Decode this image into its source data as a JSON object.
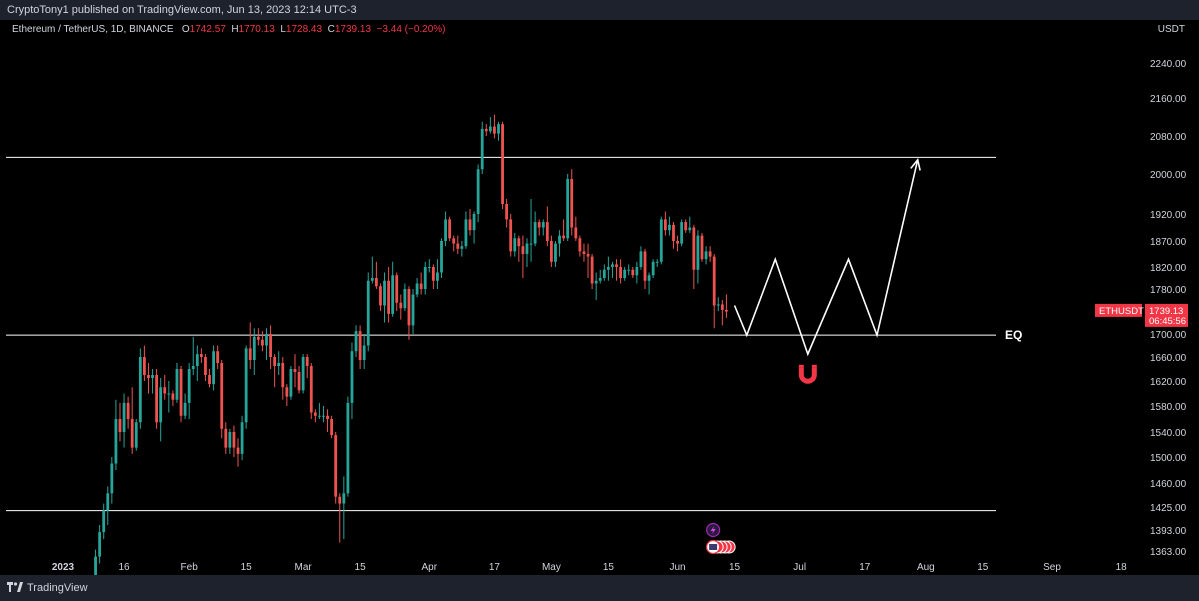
{
  "header": {
    "published": "CryptoTony1 published on TradingView.com, Jun 13, 2023 12:14 UTC-3"
  },
  "legend": {
    "symbol": "Ethereum / TetherUS, 1D, BINANCE",
    "o_label": "O",
    "o": "1742.57",
    "h_label": "H",
    "h": "1770.13",
    "l_label": "L",
    "l": "1728.43",
    "c_label": "C",
    "c": "1739.13",
    "change": "−3.44 (−0.20%)"
  },
  "currency": "USDT",
  "price_tag": {
    "symbol": "ETHUSDT",
    "price": "1739.13",
    "countdown": "06:45:56"
  },
  "eq_label": "EQ",
  "footer": {
    "brand": "TradingView"
  },
  "colors": {
    "up": "#26a69a",
    "down": "#ef5350",
    "background": "#000000",
    "panel": "#1e222d"
  },
  "chart_data": {
    "type": "candlestick",
    "symbol": "ETHUSDT",
    "interval": "1D",
    "y_ticks": [
      1363,
      1393,
      1425,
      1460,
      1500,
      1540,
      1580,
      1620,
      1660,
      1700,
      1740,
      1780,
      1820,
      1870,
      1920,
      2000,
      2080,
      2160,
      2240
    ],
    "y_tick_labels": [
      "1363.00",
      "1393.00",
      "1425.00",
      "1460.00",
      "1500.00",
      "1540.00",
      "1580.00",
      "1620.00",
      "1660.00",
      "1700.00",
      "1740.00",
      "1780.00",
      "1820.00",
      "1870.00",
      "1920.00",
      "2000.00",
      "2080.00",
      "2160.00",
      "2240.00"
    ],
    "x_labels": [
      {
        "label": "2023",
        "date": "2023-01-01",
        "bold": true
      },
      {
        "label": "16",
        "date": "2023-01-16"
      },
      {
        "label": "Feb",
        "date": "2023-02-01"
      },
      {
        "label": "15",
        "date": "2023-02-15"
      },
      {
        "label": "Mar",
        "date": "2023-03-01"
      },
      {
        "label": "15",
        "date": "2023-03-15"
      },
      {
        "label": "Apr",
        "date": "2023-04-01"
      },
      {
        "label": "17",
        "date": "2023-04-17"
      },
      {
        "label": "May",
        "date": "2023-05-01"
      },
      {
        "label": "15",
        "date": "2023-05-15"
      },
      {
        "label": "Jun",
        "date": "2023-06-01"
      },
      {
        "label": "15",
        "date": "2023-06-15"
      },
      {
        "label": "Jul",
        "date": "2023-07-01"
      },
      {
        "label": "17",
        "date": "2023-07-17"
      },
      {
        "label": "Aug",
        "date": "2023-08-01"
      },
      {
        "label": "15",
        "date": "2023-08-15"
      },
      {
        "label": "Sep",
        "date": "2023-09-01"
      },
      {
        "label": "18",
        "date": "2023-09-18"
      }
    ],
    "horizontal_levels": [
      {
        "price": 2035,
        "label": ""
      },
      {
        "price": 1698,
        "label": "EQ"
      },
      {
        "price": 1420,
        "label": ""
      }
    ],
    "projection_path": [
      {
        "date": "2023-06-15",
        "price": 1750
      },
      {
        "date": "2023-06-18",
        "price": 1698
      },
      {
        "date": "2023-06-25",
        "price": 1835
      },
      {
        "date": "2023-07-03",
        "price": 1665
      },
      {
        "date": "2023-07-13",
        "price": 1835
      },
      {
        "date": "2023-07-20",
        "price": 1698
      },
      {
        "date": "2023-07-30",
        "price": 2030
      }
    ],
    "candles": [
      [
        "2023-01-09",
        1320,
        1365,
        1300,
        1355
      ],
      [
        "2023-01-10",
        1355,
        1400,
        1345,
        1390
      ],
      [
        "2023-01-11",
        1390,
        1430,
        1380,
        1420
      ],
      [
        "2023-01-12",
        1420,
        1455,
        1400,
        1445
      ],
      [
        "2023-01-13",
        1445,
        1500,
        1430,
        1490
      ],
      [
        "2023-01-14",
        1490,
        1590,
        1480,
        1560
      ],
      [
        "2023-01-15",
        1560,
        1585,
        1525,
        1540
      ],
      [
        "2023-01-16",
        1540,
        1600,
        1515,
        1585
      ],
      [
        "2023-01-17",
        1585,
        1595,
        1545,
        1560
      ],
      [
        "2023-01-18",
        1560,
        1610,
        1505,
        1515
      ],
      [
        "2023-01-19",
        1515,
        1560,
        1510,
        1555
      ],
      [
        "2023-01-20",
        1555,
        1675,
        1545,
        1660
      ],
      [
        "2023-01-21",
        1660,
        1680,
        1620,
        1630
      ],
      [
        "2023-01-22",
        1630,
        1650,
        1600,
        1625
      ],
      [
        "2023-01-23",
        1625,
        1640,
        1600,
        1630
      ],
      [
        "2023-01-24",
        1630,
        1640,
        1545,
        1555
      ],
      [
        "2023-01-25",
        1555,
        1625,
        1525,
        1610
      ],
      [
        "2023-01-26",
        1610,
        1630,
        1590,
        1600
      ],
      [
        "2023-01-27",
        1600,
        1620,
        1570,
        1600
      ],
      [
        "2023-01-28",
        1600,
        1605,
        1580,
        1590
      ],
      [
        "2023-01-29",
        1590,
        1650,
        1585,
        1640
      ],
      [
        "2023-01-30",
        1640,
        1645,
        1555,
        1565
      ],
      [
        "2023-01-31",
        1565,
        1600,
        1560,
        1585
      ],
      [
        "2023-02-01",
        1585,
        1650,
        1560,
        1640
      ],
      [
        "2023-02-02",
        1640,
        1695,
        1630,
        1645
      ],
      [
        "2023-02-03",
        1645,
        1680,
        1620,
        1665
      ],
      [
        "2023-02-04",
        1665,
        1675,
        1650,
        1660
      ],
      [
        "2023-02-05",
        1660,
        1665,
        1620,
        1630
      ],
      [
        "2023-02-06",
        1630,
        1640,
        1610,
        1615
      ],
      [
        "2023-02-07",
        1615,
        1680,
        1605,
        1670
      ],
      [
        "2023-02-08",
        1670,
        1680,
        1640,
        1650
      ],
      [
        "2023-02-09",
        1650,
        1655,
        1530,
        1545
      ],
      [
        "2023-02-10",
        1545,
        1555,
        1505,
        1515
      ],
      [
        "2023-02-11",
        1515,
        1545,
        1505,
        1540
      ],
      [
        "2023-02-12",
        1540,
        1550,
        1500,
        1515
      ],
      [
        "2023-02-13",
        1515,
        1530,
        1485,
        1505
      ],
      [
        "2023-02-14",
        1505,
        1565,
        1495,
        1555
      ],
      [
        "2023-02-15",
        1555,
        1680,
        1545,
        1675
      ],
      [
        "2023-02-16",
        1675,
        1720,
        1640,
        1655
      ],
      [
        "2023-02-17",
        1655,
        1710,
        1630,
        1695
      ],
      [
        "2023-02-18",
        1695,
        1710,
        1680,
        1690
      ],
      [
        "2023-02-19",
        1690,
        1705,
        1670,
        1680
      ],
      [
        "2023-02-20",
        1680,
        1710,
        1655,
        1700
      ],
      [
        "2023-02-21",
        1700,
        1715,
        1640,
        1660
      ],
      [
        "2023-02-22",
        1660,
        1665,
        1610,
        1645
      ],
      [
        "2023-02-23",
        1645,
        1670,
        1630,
        1650
      ],
      [
        "2023-02-24",
        1650,
        1660,
        1590,
        1610
      ],
      [
        "2023-02-25",
        1610,
        1615,
        1580,
        1595
      ],
      [
        "2023-02-26",
        1595,
        1645,
        1590,
        1640
      ],
      [
        "2023-02-27",
        1640,
        1665,
        1610,
        1635
      ],
      [
        "2023-02-28",
        1635,
        1645,
        1600,
        1605
      ],
      [
        "2023-03-01",
        1605,
        1665,
        1600,
        1660
      ],
      [
        "2023-03-02",
        1660,
        1665,
        1625,
        1645
      ],
      [
        "2023-03-03",
        1645,
        1650,
        1560,
        1570
      ],
      [
        "2023-03-04",
        1570,
        1575,
        1555,
        1565
      ],
      [
        "2023-03-05",
        1565,
        1585,
        1560,
        1565
      ],
      [
        "2023-03-06",
        1565,
        1580,
        1555,
        1565
      ],
      [
        "2023-03-07",
        1565,
        1575,
        1540,
        1560
      ],
      [
        "2023-03-08",
        1560,
        1565,
        1530,
        1535
      ],
      [
        "2023-03-09",
        1535,
        1540,
        1430,
        1440
      ],
      [
        "2023-03-10",
        1440,
        1445,
        1375,
        1430
      ],
      [
        "2023-03-11",
        1430,
        1470,
        1380,
        1445
      ],
      [
        "2023-03-12",
        1445,
        1595,
        1440,
        1585
      ],
      [
        "2023-03-13",
        1585,
        1685,
        1560,
        1670
      ],
      [
        "2023-03-14",
        1670,
        1715,
        1660,
        1705
      ],
      [
        "2023-03-15",
        1705,
        1715,
        1640,
        1655
      ],
      [
        "2023-03-16",
        1655,
        1700,
        1640,
        1680
      ],
      [
        "2023-03-17",
        1680,
        1810,
        1670,
        1795
      ],
      [
        "2023-03-18",
        1795,
        1840,
        1790,
        1800
      ],
      [
        "2023-03-19",
        1800,
        1830,
        1780,
        1785
      ],
      [
        "2023-03-20",
        1785,
        1790,
        1740,
        1750
      ],
      [
        "2023-03-21",
        1750,
        1810,
        1720,
        1795
      ],
      [
        "2023-03-22",
        1795,
        1820,
        1720,
        1735
      ],
      [
        "2023-03-23",
        1735,
        1830,
        1730,
        1805
      ],
      [
        "2023-03-24",
        1805,
        1810,
        1740,
        1755
      ],
      [
        "2023-03-25",
        1755,
        1770,
        1725,
        1745
      ],
      [
        "2023-03-26",
        1745,
        1790,
        1740,
        1780
      ],
      [
        "2023-03-27",
        1780,
        1785,
        1690,
        1715
      ],
      [
        "2023-03-28",
        1715,
        1780,
        1700,
        1770
      ],
      [
        "2023-03-29",
        1770,
        1800,
        1765,
        1790
      ],
      [
        "2023-03-30",
        1790,
        1810,
        1770,
        1780
      ],
      [
        "2023-03-31",
        1780,
        1830,
        1770,
        1820
      ],
      [
        "2023-04-01",
        1820,
        1835,
        1810,
        1820
      ],
      [
        "2023-04-02",
        1820,
        1825,
        1780,
        1795
      ],
      [
        "2023-04-03",
        1795,
        1835,
        1780,
        1810
      ],
      [
        "2023-04-04",
        1810,
        1875,
        1800,
        1870
      ],
      [
        "2023-04-05",
        1870,
        1925,
        1860,
        1910
      ],
      [
        "2023-04-06",
        1910,
        1915,
        1870,
        1875
      ],
      [
        "2023-04-07",
        1875,
        1880,
        1850,
        1865
      ],
      [
        "2023-04-08",
        1865,
        1880,
        1845,
        1855
      ],
      [
        "2023-04-09",
        1855,
        1870,
        1840,
        1860
      ],
      [
        "2023-04-10",
        1860,
        1925,
        1855,
        1910
      ],
      [
        "2023-04-11",
        1910,
        1930,
        1880,
        1890
      ],
      [
        "2023-04-12",
        1890,
        1925,
        1865,
        1920
      ],
      [
        "2023-04-13",
        1920,
        2020,
        1905,
        2010
      ],
      [
        "2023-04-14",
        2010,
        2110,
        2000,
        2095
      ],
      [
        "2023-04-15",
        2095,
        2105,
        2080,
        2090
      ],
      [
        "2023-04-16",
        2090,
        2120,
        2085,
        2100
      ],
      [
        "2023-04-17",
        2100,
        2125,
        2075,
        2085
      ],
      [
        "2023-04-18",
        2085,
        2110,
        2070,
        2105
      ],
      [
        "2023-04-19",
        2105,
        2110,
        1930,
        1940
      ],
      [
        "2023-04-20",
        1940,
        1950,
        1895,
        1910
      ],
      [
        "2023-04-21",
        1910,
        1920,
        1840,
        1850
      ],
      [
        "2023-04-22",
        1850,
        1885,
        1840,
        1875
      ],
      [
        "2023-04-23",
        1875,
        1880,
        1830,
        1860
      ],
      [
        "2023-04-24",
        1860,
        1880,
        1800,
        1845
      ],
      [
        "2023-04-25",
        1845,
        1875,
        1820,
        1865
      ],
      [
        "2023-04-26",
        1865,
        1950,
        1830,
        1865
      ],
      [
        "2023-04-27",
        1865,
        1925,
        1860,
        1905
      ],
      [
        "2023-04-28",
        1905,
        1910,
        1880,
        1895
      ],
      [
        "2023-04-29",
        1895,
        1910,
        1880,
        1905
      ],
      [
        "2023-04-30",
        1905,
        1935,
        1860,
        1870
      ],
      [
        "2023-05-01",
        1870,
        1880,
        1820,
        1830
      ],
      [
        "2023-05-02",
        1830,
        1870,
        1820,
        1865
      ],
      [
        "2023-05-03",
        1865,
        1890,
        1840,
        1880
      ],
      [
        "2023-05-04",
        1880,
        1910,
        1870,
        1875
      ],
      [
        "2023-05-05",
        1875,
        2000,
        1870,
        1990
      ],
      [
        "2023-05-06",
        1990,
        2010,
        1880,
        1895
      ],
      [
        "2023-05-07",
        1895,
        1915,
        1870,
        1875
      ],
      [
        "2023-05-08",
        1875,
        1880,
        1840,
        1850
      ],
      [
        "2023-05-09",
        1850,
        1865,
        1830,
        1845
      ],
      [
        "2023-05-10",
        1845,
        1865,
        1800,
        1840
      ],
      [
        "2023-05-11",
        1840,
        1845,
        1780,
        1790
      ],
      [
        "2023-05-12",
        1790,
        1810,
        1760,
        1795
      ],
      [
        "2023-05-13",
        1795,
        1815,
        1790,
        1800
      ],
      [
        "2023-05-14",
        1800,
        1825,
        1795,
        1815
      ],
      [
        "2023-05-15",
        1815,
        1840,
        1795,
        1820
      ],
      [
        "2023-05-16",
        1820,
        1830,
        1800,
        1825
      ],
      [
        "2023-05-17",
        1825,
        1835,
        1795,
        1820
      ],
      [
        "2023-05-18",
        1820,
        1835,
        1790,
        1800
      ],
      [
        "2023-05-19",
        1800,
        1820,
        1795,
        1815
      ],
      [
        "2023-05-20",
        1815,
        1825,
        1805,
        1815
      ],
      [
        "2023-05-21",
        1815,
        1820,
        1800,
        1805
      ],
      [
        "2023-05-22",
        1805,
        1830,
        1790,
        1820
      ],
      [
        "2023-05-23",
        1820,
        1860,
        1815,
        1850
      ],
      [
        "2023-05-24",
        1850,
        1855,
        1780,
        1795
      ],
      [
        "2023-05-25",
        1795,
        1810,
        1770,
        1805
      ],
      [
        "2023-05-26",
        1805,
        1835,
        1800,
        1830
      ],
      [
        "2023-05-27",
        1830,
        1835,
        1820,
        1830
      ],
      [
        "2023-05-28",
        1830,
        1915,
        1825,
        1910
      ],
      [
        "2023-05-29",
        1910,
        1925,
        1880,
        1890
      ],
      [
        "2023-05-30",
        1890,
        1915,
        1880,
        1900
      ],
      [
        "2023-05-31",
        1900,
        1905,
        1855,
        1870
      ],
      [
        "2023-06-01",
        1870,
        1880,
        1850,
        1865
      ],
      [
        "2023-06-02",
        1865,
        1910,
        1860,
        1905
      ],
      [
        "2023-06-03",
        1905,
        1910,
        1885,
        1890
      ],
      [
        "2023-06-04",
        1890,
        1915,
        1885,
        1895
      ],
      [
        "2023-06-05",
        1895,
        1900,
        1780,
        1815
      ],
      [
        "2023-06-06",
        1815,
        1890,
        1790,
        1880
      ],
      [
        "2023-06-07",
        1880,
        1885,
        1830,
        1835
      ],
      [
        "2023-06-08",
        1835,
        1860,
        1825,
        1850
      ],
      [
        "2023-06-09",
        1850,
        1860,
        1830,
        1840
      ],
      [
        "2023-06-10",
        1840,
        1845,
        1710,
        1750
      ],
      [
        "2023-06-11",
        1750,
        1765,
        1740,
        1752
      ],
      [
        "2023-06-12",
        1752,
        1760,
        1715,
        1742
      ],
      [
        "2023-06-13",
        1742,
        1770,
        1728,
        1739
      ]
    ]
  }
}
